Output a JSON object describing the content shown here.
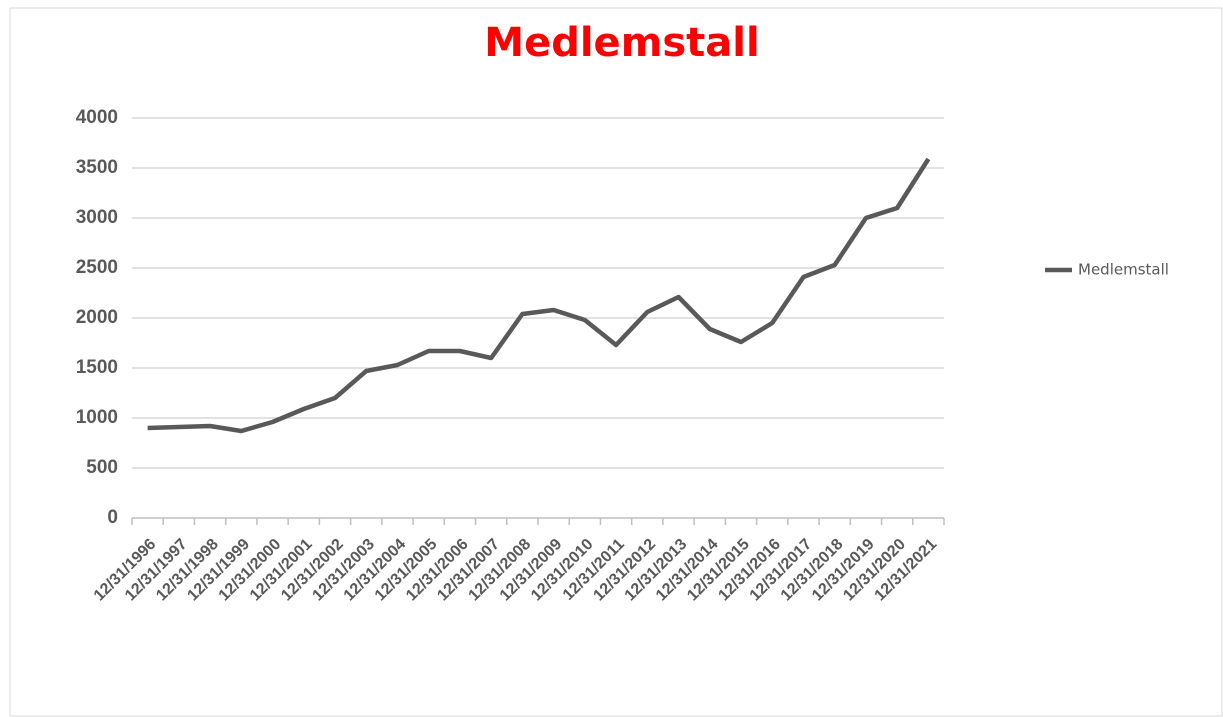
{
  "chart_data": {
    "type": "line",
    "title": "Medlemstall",
    "categories": [
      "12/31/1996",
      "12/31/1997",
      "12/31/1998",
      "12/31/1999",
      "12/31/2000",
      "12/31/2001",
      "12/31/2002",
      "12/31/2003",
      "12/31/2004",
      "12/31/2005",
      "12/31/2006",
      "12/31/2007",
      "12/31/2008",
      "12/31/2009",
      "12/31/2010",
      "12/31/2011",
      "12/31/2012",
      "12/31/2013",
      "12/31/2014",
      "12/31/2015",
      "12/31/2016",
      "12/31/2017",
      "12/31/2018",
      "12/31/2019",
      "12/31/2020",
      "12/31/2021"
    ],
    "series": [
      {
        "name": "Medlemstall",
        "color": "#595959",
        "values": [
          900,
          910,
          920,
          870,
          960,
          1090,
          1200,
          1470,
          1530,
          1670,
          1670,
          1600,
          2040,
          2080,
          1980,
          1730,
          2060,
          2210,
          1890,
          1760,
          1950,
          2410,
          2530,
          3000,
          3100,
          3590
        ]
      }
    ],
    "ylim": [
      0,
      4000
    ],
    "yticks": [
      0,
      500,
      1000,
      1500,
      2000,
      2500,
      3000,
      3500,
      4000
    ],
    "grid": true,
    "legend": "right"
  }
}
